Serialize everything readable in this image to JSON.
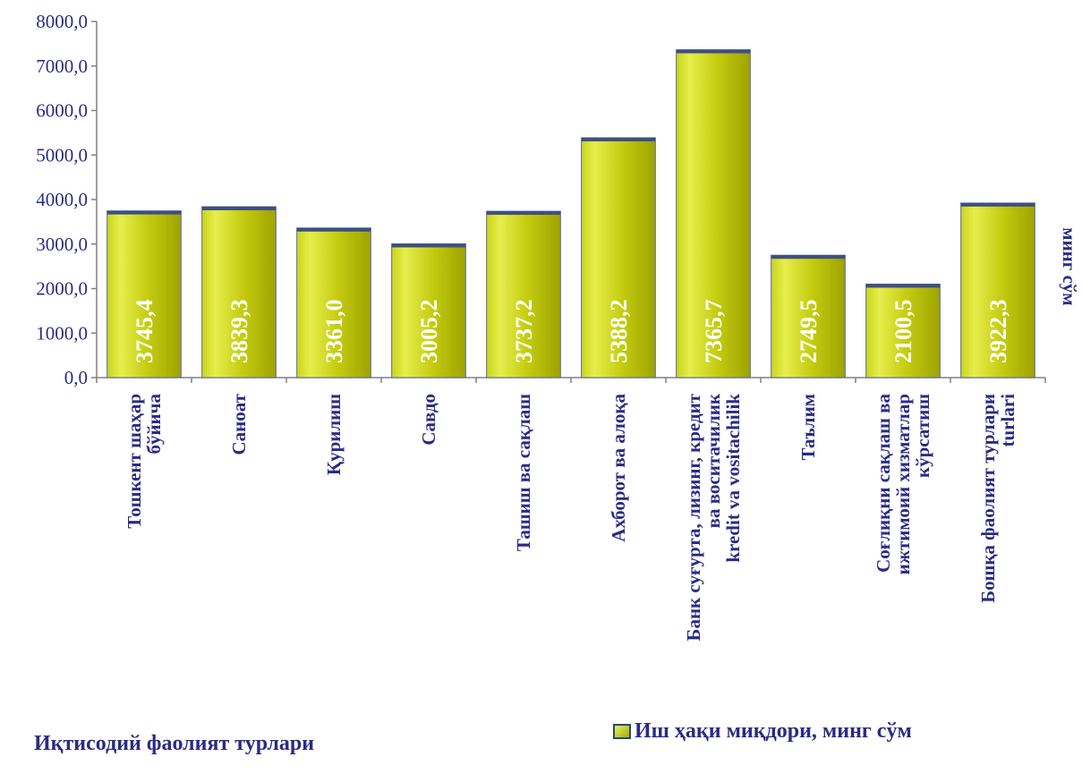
{
  "chart_data": {
    "type": "bar",
    "title": "",
    "categories": [
      [
        "Тошкент шаҳар",
        "бўйича"
      ],
      [
        "Саноат"
      ],
      [
        "Қурилиш"
      ],
      [
        "Савдо"
      ],
      [
        "Ташиш ва сақлаш"
      ],
      [
        "Ахборот ва алоқа"
      ],
      [
        "Банк суғурта, лизинг, кредит",
        "ва воситачилик",
        "kredit va vositachilik"
      ],
      [
        "Таълим"
      ],
      [
        "Соғлиқни сақлаш ва",
        "ижтимоий хизматлар",
        "кўрсатиш"
      ],
      [
        "Бошқа фаолият турлари",
        "turlari"
      ]
    ],
    "values": [
      3745.4,
      3839.3,
      3361.0,
      3005.2,
      3737.2,
      5388.2,
      7365.7,
      2749.5,
      2100.5,
      3922.3
    ],
    "value_labels": [
      "3745,4",
      "3839,3",
      "3361,0",
      "3005,2",
      "3737,2",
      "5388,2",
      "7365,7",
      "2749,5",
      "2100,5",
      "3922,3"
    ],
    "ylim": [
      0,
      8000
    ],
    "yticks": [
      "0,0",
      "1000,0",
      "2000,0",
      "3000,0",
      "4000,0",
      "5000,0",
      "6000,0",
      "7000,0",
      "8000,0"
    ],
    "ylabel": "минг сўм",
    "xlabel": "Иқтисодий фаолият турлари",
    "series_name": "Иш ҳақи миқдори, минг сўм",
    "legend_position": "bottom-right",
    "grid": false,
    "colors": {
      "bar_light": "#e8f06e",
      "bar_dark": "#9aa000",
      "bar_edge": "#3f4f7f",
      "text": "#2b2b84",
      "axis": "#808080"
    }
  }
}
